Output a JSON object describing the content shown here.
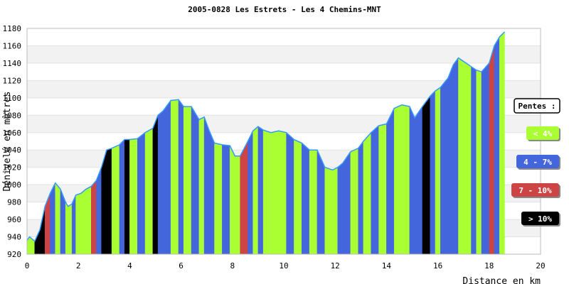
{
  "chart_data": {
    "type": "area",
    "title": "2005-0828 Les Estrets - Les 4 Chemins-MNT",
    "xlabel": "Distance en km",
    "ylabel": "Dénivelé en mètres",
    "xlim": [
      0,
      20
    ],
    "ylim": [
      920,
      1180
    ],
    "x_ticks": [
      "0",
      "2",
      "4",
      "6",
      "8",
      "10",
      "12",
      "14",
      "16",
      "18",
      "20"
    ],
    "y_ticks": [
      "920",
      "940",
      "960",
      "980",
      "1000",
      "1020",
      "1040",
      "1060",
      "1080",
      "1100",
      "1120",
      "1140",
      "1160",
      "1180"
    ],
    "grid": "horizontal bands",
    "legend": {
      "title": "Pentes :",
      "placement": "right",
      "entries": [
        {
          "label": "< 4%",
          "color": "#aaff33"
        },
        {
          "label": "4 - 7%",
          "color": "#4466dd"
        },
        {
          "label": "7 - 10%",
          "color": "#cc4444"
        },
        {
          "label": "> 10%",
          "color": "#000000"
        }
      ]
    },
    "colors": {
      "lt4": "#aaff33",
      "p4_7": "#4466dd",
      "p7_10": "#cc4444",
      "gt10": "#000000",
      "profile_line": "#3399ff"
    },
    "series": [
      {
        "x": [
          0,
          0.1,
          0.3,
          0.5,
          0.7,
          0.9,
          1.1,
          1.3,
          1.5,
          1.6,
          1.75,
          1.9,
          2.1,
          2.3,
          2.5,
          2.7,
          2.9,
          3.1,
          3.3,
          3.6,
          3.8,
          4.0,
          4.3,
          4.6,
          4.9,
          5.1,
          5.3,
          5.6,
          5.9,
          6.1,
          6.4,
          6.7,
          6.9,
          7.1,
          7.3,
          7.6,
          7.9,
          8.1,
          8.3,
          8.6,
          8.8,
          9.0,
          9.2,
          9.5,
          9.8,
          10.1,
          10.4,
          10.7,
          11.0,
          11.3,
          11.6,
          11.9,
          12.1,
          12.3,
          12.6,
          12.9,
          13.1,
          13.4,
          13.7,
          14.0,
          14.3,
          14.6,
          14.9,
          15.1,
          15.4,
          15.7,
          15.9,
          16.1,
          16.4,
          16.6,
          16.8,
          17.1,
          17.3,
          17.5,
          17.7,
          18.0,
          18.2,
          18.4,
          18.6
        ],
        "y": [
          936,
          940,
          935,
          948,
          975,
          990,
          1002,
          995,
          980,
          975,
          978,
          988,
          990,
          995,
          998,
          1005,
          1020,
          1040,
          1042,
          1046,
          1052,
          1052,
          1053,
          1060,
          1065,
          1080,
          1085,
          1097,
          1098,
          1090,
          1090,
          1075,
          1078,
          1062,
          1048,
          1046,
          1045,
          1033,
          1033,
          1050,
          1062,
          1067,
          1063,
          1060,
          1062,
          1060,
          1052,
          1048,
          1040,
          1040,
          1020,
          1017,
          1020,
          1025,
          1038,
          1042,
          1050,
          1060,
          1068,
          1070,
          1088,
          1092,
          1090,
          1077,
          1090,
          1102,
          1108,
          1112,
          1123,
          1138,
          1146,
          1140,
          1136,
          1132,
          1130,
          1140,
          1160,
          1170,
          1176
        ],
        "slope_classes": [
          0,
          0,
          3,
          3,
          2,
          1,
          0,
          1,
          0,
          0,
          1,
          0,
          0,
          0,
          2,
          1,
          3,
          3,
          0,
          1,
          3,
          0,
          1,
          0,
          3,
          1,
          1,
          0,
          1,
          0,
          1,
          0,
          1,
          1,
          0,
          1,
          0,
          0,
          2,
          1,
          0,
          1,
          0,
          0,
          0,
          1,
          0,
          1,
          0,
          1,
          0,
          0,
          1,
          1,
          0,
          1,
          0,
          1,
          0,
          1,
          0,
          0,
          1,
          1,
          3,
          1,
          0,
          1,
          1,
          1,
          0,
          0,
          1,
          0,
          1,
          2,
          1,
          0
        ]
      }
    ]
  }
}
